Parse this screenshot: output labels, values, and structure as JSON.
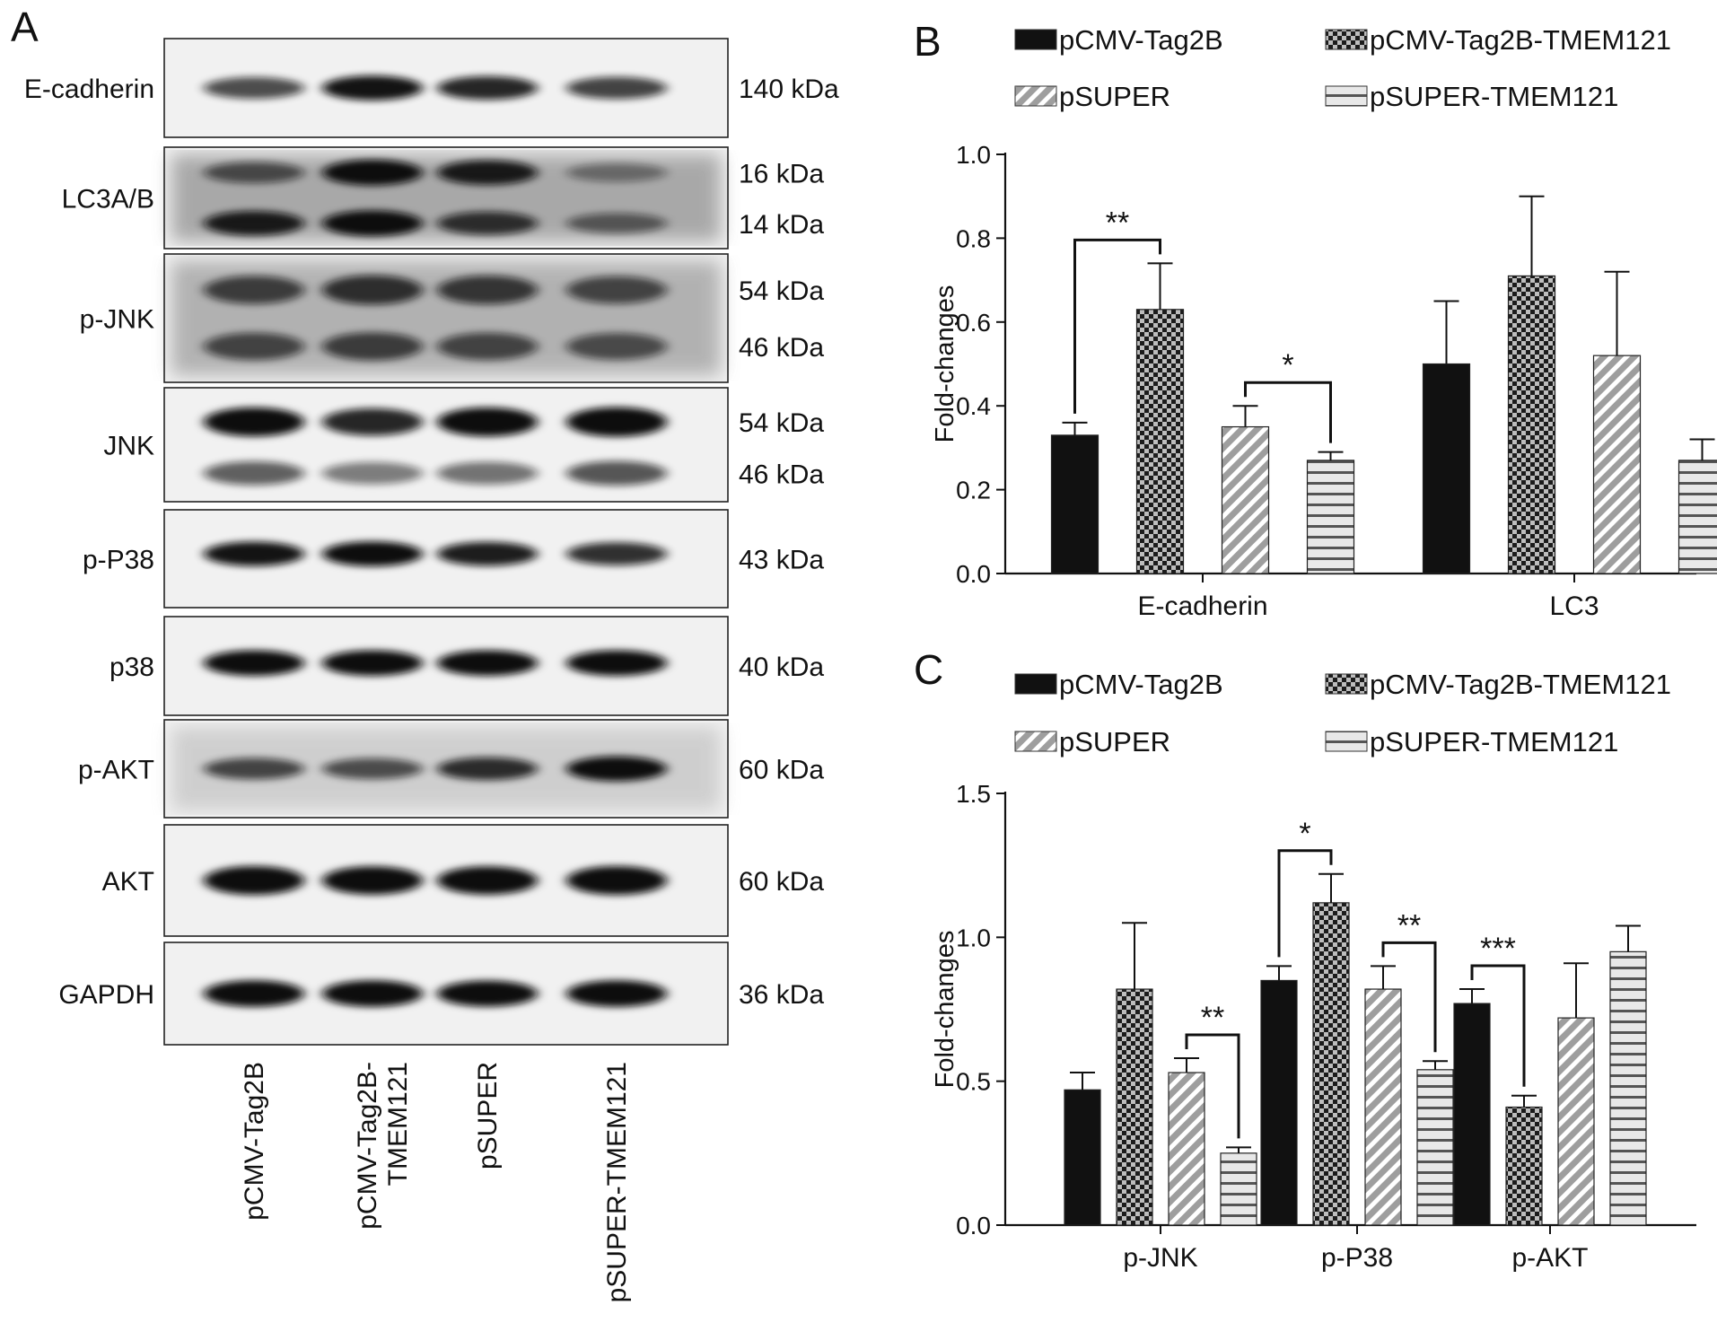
{
  "panel_a": {
    "letter": "A",
    "blots": [
      {
        "name": "E-cadherin",
        "sizes": [
          "140 kDa"
        ],
        "bands": [
          {
            "row": 0.5,
            "intensity": [
              0.55,
              0.85,
              0.75,
              0.6
            ]
          }
        ]
      },
      {
        "name": "LC3A/B",
        "sizes": [
          "16 kDa",
          "14 kDa"
        ],
        "bands": [
          {
            "row": 0.25,
            "intensity": [
              0.45,
              0.9,
              0.8,
              0.2
            ]
          },
          {
            "row": 0.75,
            "intensity": [
              0.8,
              0.9,
              0.65,
              0.35
            ]
          }
        ]
      },
      {
        "name": "p-JNK",
        "sizes": [
          "54 kDa",
          "46 kDa"
        ],
        "bands": [
          {
            "row": 0.28,
            "intensity": [
              0.55,
              0.65,
              0.6,
              0.5
            ]
          },
          {
            "row": 0.72,
            "intensity": [
              0.5,
              0.55,
              0.5,
              0.45
            ]
          }
        ]
      },
      {
        "name": "JNK",
        "sizes": [
          "54 kDa",
          "46 kDa"
        ],
        "bands": [
          {
            "row": 0.3,
            "intensity": [
              0.9,
              0.75,
              0.9,
              0.95
            ]
          },
          {
            "row": 0.75,
            "intensity": [
              0.45,
              0.3,
              0.35,
              0.5
            ]
          }
        ]
      },
      {
        "name": "p-P38",
        "sizes": [
          "43 kDa"
        ],
        "bands": [
          {
            "row": 0.45,
            "intensity": [
              0.85,
              0.9,
              0.8,
              0.7
            ]
          }
        ]
      },
      {
        "name": "p38",
        "sizes": [
          "40 kDa"
        ],
        "bands": [
          {
            "row": 0.47,
            "intensity": [
              0.95,
              0.95,
              0.95,
              0.95
            ]
          }
        ]
      },
      {
        "name": "p-AKT",
        "sizes": [
          "60 kDa"
        ],
        "bands": [
          {
            "row": 0.5,
            "intensity": [
              0.55,
              0.5,
              0.7,
              0.9
            ]
          }
        ]
      },
      {
        "name": "AKT",
        "sizes": [
          "60 kDa"
        ],
        "bands": [
          {
            "row": 0.5,
            "intensity": [
              0.95,
              0.9,
              0.9,
              0.95
            ]
          }
        ]
      },
      {
        "name": "GAPDH",
        "sizes": [
          "36 kDa"
        ],
        "bands": [
          {
            "row": 0.5,
            "intensity": [
              0.95,
              0.95,
              0.9,
              0.95
            ]
          }
        ]
      }
    ],
    "lanes": [
      [
        "pCMV-Tag2B"
      ],
      [
        "pCMV-Tag2B-",
        "TMEM121"
      ],
      [
        "pSUPER"
      ],
      [
        "pSUPER-TMEM121"
      ]
    ]
  },
  "legend": [
    "pCMV-Tag2B",
    "pCMV-Tag2B-TMEM121",
    "pSUPER",
    "pSUPER-TMEM121"
  ],
  "chart_data": [
    {
      "type": "bar",
      "letter": "B",
      "ylabel": "Fold-changes",
      "ylim": [
        0,
        1.0
      ],
      "yticks": [
        "0.0",
        "0.2",
        "0.4",
        "0.6",
        "0.8",
        "1.0"
      ],
      "categories": [
        "E-cadherin",
        "LC3"
      ],
      "series": [
        {
          "name": "pCMV-Tag2B",
          "values": [
            0.33,
            0.5
          ],
          "errors": [
            0.03,
            0.15
          ]
        },
        {
          "name": "pCMV-Tag2B-TMEM121",
          "values": [
            0.63,
            0.71
          ],
          "errors": [
            0.11,
            0.19
          ]
        },
        {
          "name": "pSUPER",
          "values": [
            0.35,
            0.52
          ],
          "errors": [
            0.05,
            0.2
          ]
        },
        {
          "name": "pSUPER-TMEM121",
          "values": [
            0.27,
            0.27
          ],
          "errors": [
            0.02,
            0.05
          ]
        }
      ],
      "annotations": [
        {
          "category": 0,
          "from": 0,
          "to": 1,
          "label": "**"
        },
        {
          "category": 0,
          "from": 2,
          "to": 3,
          "label": "*"
        }
      ]
    },
    {
      "type": "bar",
      "letter": "C",
      "ylabel": "Fold-changes",
      "ylim": [
        0,
        1.5
      ],
      "yticks": [
        "0.0",
        "0.5",
        "1.0",
        "1.5"
      ],
      "categories": [
        "p-JNK",
        "p-P38",
        "p-AKT"
      ],
      "series": [
        {
          "name": "pCMV-Tag2B",
          "values": [
            0.47,
            0.85,
            0.77
          ],
          "errors": [
            0.06,
            0.05,
            0.05
          ]
        },
        {
          "name": "pCMV-Tag2B-TMEM121",
          "values": [
            0.82,
            1.12,
            0.41
          ],
          "errors": [
            0.23,
            0.1,
            0.04
          ]
        },
        {
          "name": "pSUPER",
          "values": [
            0.53,
            0.82,
            0.72
          ],
          "errors": [
            0.05,
            0.08,
            0.19
          ]
        },
        {
          "name": "pSUPER-TMEM121",
          "values": [
            0.25,
            0.54,
            0.95
          ],
          "errors": [
            0.02,
            0.03,
            0.09
          ]
        }
      ],
      "annotations": [
        {
          "category": 0,
          "from": 2,
          "to": 3,
          "label": "**"
        },
        {
          "category": 1,
          "from": 0,
          "to": 1,
          "label": "*"
        },
        {
          "category": 1,
          "from": 2,
          "to": 3,
          "label": "**"
        },
        {
          "category": 2,
          "from": 0,
          "to": 1,
          "label": "***"
        }
      ]
    }
  ]
}
